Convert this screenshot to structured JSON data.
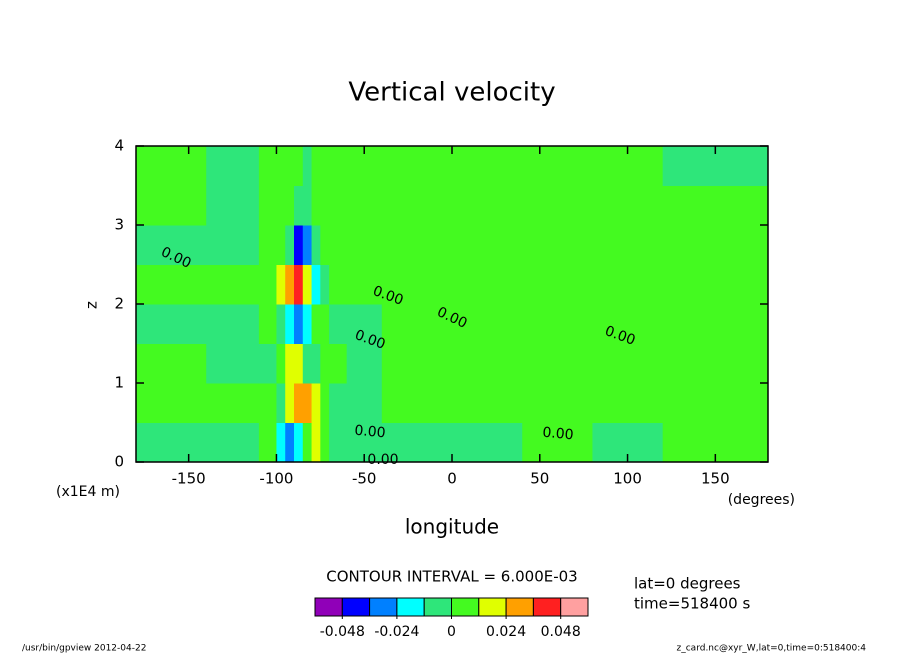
{
  "chart_data": {
    "type": "contour",
    "title": "Vertical velocity",
    "xlabel": "longitude",
    "xunits": "(degrees)",
    "ylabel": "z",
    "yunits": "(x1E4 m)",
    "xlim": [
      -180,
      180
    ],
    "xticks": [
      -150,
      -100,
      -50,
      0,
      50,
      100,
      150
    ],
    "ylim": [
      0,
      4
    ],
    "yticks": [
      0,
      1,
      2,
      3,
      4
    ],
    "x_edges": [
      -180,
      -140,
      -110,
      -100,
      -95,
      -90,
      -85,
      -80,
      -75,
      -70,
      -60,
      -40,
      0,
      40,
      80,
      120,
      180
    ],
    "y_edges": [
      0,
      0.5,
      1,
      1.5,
      2,
      2.5,
      3,
      3.5,
      4
    ],
    "values": [
      [
        -0.004,
        -0.004,
        0.004,
        -0.016,
        -0.03,
        -0.02,
        0.01,
        0.015,
        0.004,
        -0.004,
        -0.004,
        -0.004,
        -0.004,
        0.004,
        -0.004,
        0.004
      ],
      [
        0.004,
        0.004,
        0.004,
        -0.004,
        0.015,
        0.03,
        0.03,
        0.02,
        0.005,
        -0.004,
        -0.004,
        0.004,
        0.004,
        0.004,
        0.004,
        0.004
      ],
      [
        0.004,
        -0.004,
        -0.004,
        0.004,
        0.02,
        0.015,
        -0.01,
        -0.006,
        0.004,
        0.004,
        -0.004,
        0.004,
        0.004,
        0.004,
        0.004,
        0.004
      ],
      [
        -0.004,
        -0.004,
        0.004,
        -0.004,
        -0.02,
        -0.03,
        -0.02,
        0.01,
        0.004,
        -0.004,
        -0.004,
        0.004,
        0.004,
        0.004,
        0.004,
        0.004
      ],
      [
        0.004,
        0.004,
        0.004,
        0.015,
        0.03,
        0.04,
        0.02,
        -0.015,
        -0.006,
        0.004,
        0.004,
        0.004,
        0.004,
        0.004,
        0.004,
        0.004
      ],
      [
        -0.004,
        -0.004,
        0.004,
        0.004,
        -0.01,
        -0.04,
        -0.025,
        -0.006,
        0.004,
        0.004,
        0.004,
        0.004,
        0.004,
        0.004,
        0.004,
        0.004
      ],
      [
        0.004,
        -0.004,
        0.004,
        0.004,
        0.004,
        -0.006,
        -0.004,
        0.004,
        0.004,
        0.004,
        0.004,
        0.004,
        0.004,
        0.004,
        0.004,
        0.004
      ],
      [
        0.004,
        -0.004,
        0.004,
        0.004,
        0.004,
        0.004,
        -0.004,
        0.004,
        0.004,
        0.004,
        0.004,
        0.004,
        0.004,
        0.004,
        0.004,
        -0.004
      ]
    ],
    "levels": [
      -0.048,
      -0.036,
      -0.024,
      -0.012,
      0,
      0.012,
      0.024,
      0.036,
      0.048
    ],
    "colors": [
      "#9000b8",
      "#0000ff",
      "#0080ff",
      "#00ffff",
      "#2ee67a",
      "#44fa20",
      "#e0ff00",
      "#ffa000",
      "#ff2020",
      "#ffa0a0"
    ],
    "colorbar_ticks": [
      -0.048,
      -0.024,
      0,
      0.024,
      0.048
    ],
    "contour_interval": "CONTOUR INTERVAL = 6.000E-03",
    "contour_labels": [
      "0.00",
      "0.00",
      "0.00",
      "0.00",
      "0.00",
      "0.00",
      "0.00",
      "0.00"
    ],
    "info": [
      "lat=0 degrees",
      "time=518400 s"
    ],
    "footer_left": "/usr/bin/gpview  2012-04-22",
    "footer_right": "z_card.nc@xyr_W,lat=0,time=0:518400:4"
  }
}
